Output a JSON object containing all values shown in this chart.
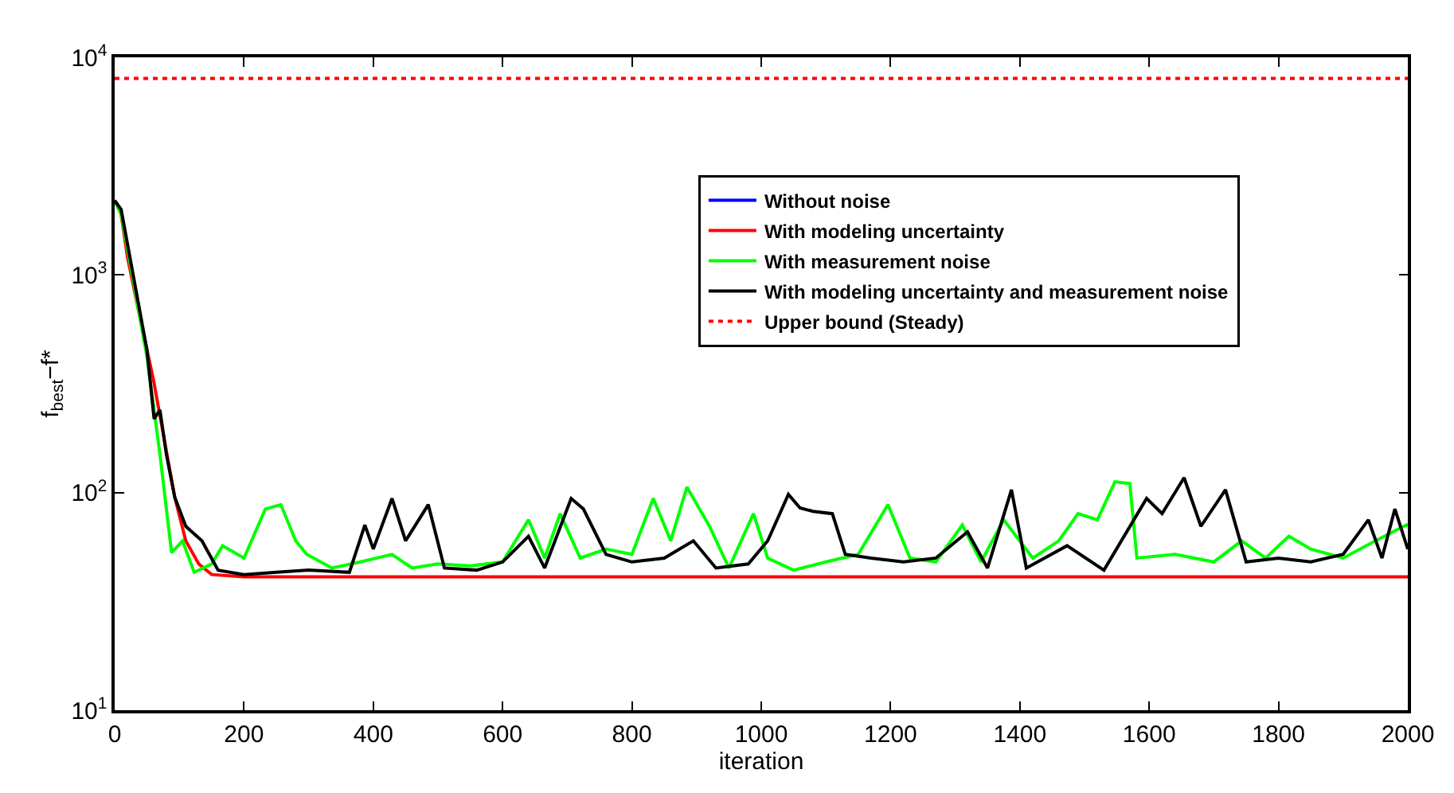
{
  "chart_data": {
    "type": "line",
    "xlabel": "iteration",
    "ylabel": "f$_{best}$−f*",
    "xlim": [
      0,
      2000
    ],
    "xticks": [
      0,
      200,
      400,
      600,
      800,
      1000,
      1200,
      1400,
      1600,
      1800,
      2000
    ],
    "ylim": [
      10,
      10000
    ],
    "yticks": [
      {
        "value": 10,
        "label": "10$^{1}$"
      },
      {
        "value": 100,
        "label": "10$^{2}$"
      },
      {
        "value": 1000,
        "label": "10$^{3}$"
      },
      {
        "value": 10000,
        "label": "10$^{4}$"
      }
    ],
    "log": "y",
    "legend": "top right",
    "line_style": "solid",
    "series": [
      {
        "name": "Without noise",
        "color": "#0000ff"
      },
      {
        "name": "With modeling uncertainty",
        "color": "#ff0000",
        "x": [
          0,
          10,
          20,
          40,
          60,
          76,
          93,
          110,
          130,
          150,
          200,
          2000
        ],
        "values": [
          2200,
          1900,
          1200,
          620,
          330,
          180,
          95,
          60,
          47,
          42,
          41,
          41
        ]
      },
      {
        "name": "With measurement noise",
        "color": "#00ff00",
        "x": [
          0,
          10,
          30,
          50,
          70,
          88,
          105,
          123,
          150,
          167,
          200,
          233,
          257,
          280,
          297,
          336,
          380,
          429,
          460,
          500,
          550,
          600,
          640,
          665,
          689,
          720,
          760,
          800,
          833,
          860,
          885,
          920,
          950,
          988,
          1010,
          1050,
          1100,
          1150,
          1196,
          1230,
          1270,
          1311,
          1340,
          1375,
          1420,
          1460,
          1490,
          1520,
          1547,
          1570,
          1581,
          1640,
          1700,
          1743,
          1780,
          1816,
          1850,
          1900,
          1950,
          1998,
          2000
        ],
        "values": [
          2200,
          1900,
          900,
          420,
          150,
          53,
          60,
          43,
          47,
          57,
          50,
          84,
          88,
          60,
          52,
          45,
          48,
          52,
          45,
          47,
          46,
          48,
          75,
          50,
          80,
          50,
          55,
          52,
          94,
          60,
          106,
          70,
          45,
          80,
          50,
          44,
          48,
          52,
          88,
          50,
          48,
          71,
          48,
          75,
          50,
          60,
          80,
          75,
          112,
          110,
          50,
          52,
          48,
          60,
          50,
          63,
          55,
          50,
          60,
          71,
          70
        ]
      },
      {
        "name": "With modeling uncertainty and measurement noise",
        "color": "#000000",
        "x": [
          0,
          10,
          30,
          50,
          61,
          70,
          80,
          93,
          110,
          135,
          160,
          200,
          250,
          300,
          363,
          387,
          400,
          429,
          450,
          485,
          510,
          560,
          600,
          640,
          665,
          706,
          725,
          760,
          800,
          850,
          895,
          930,
          980,
          1010,
          1042,
          1060,
          1080,
          1110,
          1130,
          1170,
          1220,
          1270,
          1319,
          1350,
          1387,
          1410,
          1473,
          1530,
          1596,
          1620,
          1654,
          1680,
          1718,
          1750,
          1800,
          1850,
          1900,
          1939,
          1960,
          1980,
          2000
        ],
        "values": [
          2200,
          2000,
          950,
          450,
          218,
          240,
          150,
          95,
          70,
          60,
          44,
          42,
          43,
          44,
          43,
          71,
          55,
          94,
          60,
          88,
          45,
          44,
          48,
          63,
          45,
          94,
          84,
          52,
          48,
          50,
          60,
          45,
          47,
          60,
          98,
          85,
          82,
          80,
          52,
          50,
          48,
          50,
          66,
          45,
          103,
          45,
          57,
          44,
          94,
          80,
          117,
          70,
          103,
          48,
          50,
          48,
          52,
          75,
          50,
          84,
          55
        ]
      }
    ],
    "ref_lines": [
      {
        "axis": "y",
        "value": 8000,
        "label": "Upper bound (Steady)",
        "color": "#ff0000",
        "line_style": "dotted"
      }
    ]
  }
}
